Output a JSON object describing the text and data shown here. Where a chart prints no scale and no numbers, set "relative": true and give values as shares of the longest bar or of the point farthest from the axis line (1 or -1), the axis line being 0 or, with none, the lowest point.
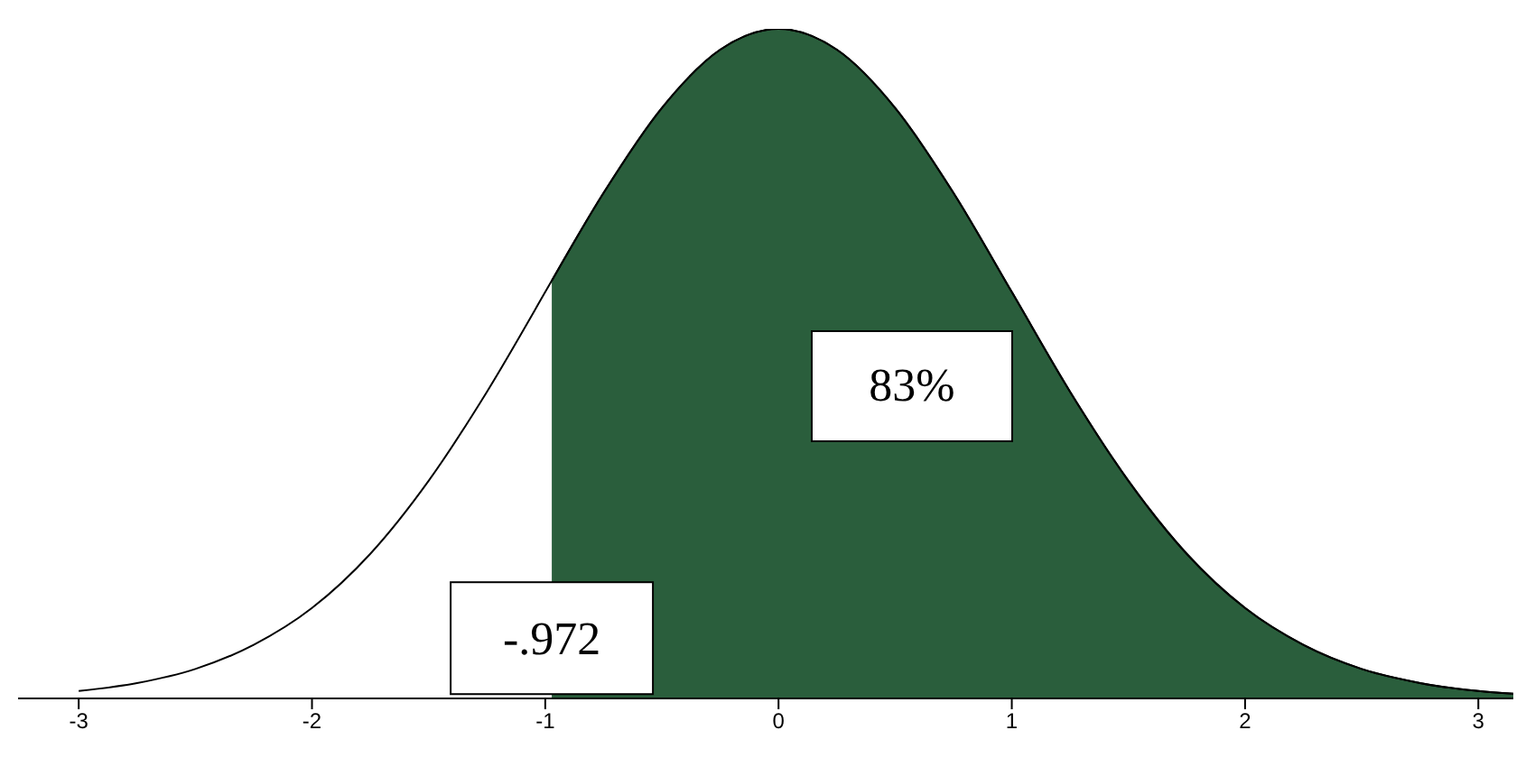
{
  "chart_data": {
    "type": "line",
    "relative": true,
    "xlim": [
      -3.26,
      3.15
    ],
    "xticks": [
      -3,
      -2,
      -1,
      0,
      1,
      2,
      3
    ],
    "grid": false,
    "legend": false,
    "marker": "none",
    "line_style": "solid",
    "annotations": [
      {
        "text": "-.972",
        "x": -0.972,
        "y": 0.09
      },
      "83%"
    ],
    "series": [
      {
        "color": "#000000",
        "x": [
          -3,
          -2.75,
          -2.5,
          -2.25,
          -2,
          -1.75,
          -1.5,
          -1.25,
          -1,
          -0.972,
          -0.75,
          -0.5,
          -0.25,
          0,
          0.25,
          0.5,
          0.75,
          1,
          1.25,
          1.5,
          1.75,
          2,
          2.25,
          2.5,
          2.75,
          3,
          3.15
        ],
        "values": [
          0.011,
          0.023,
          0.044,
          0.08,
          0.135,
          0.216,
          0.325,
          0.458,
          0.607,
          0.624,
          0.755,
          0.882,
          0.969,
          1,
          0.969,
          0.882,
          0.755,
          0.607,
          0.458,
          0.325,
          0.216,
          0.135,
          0.08,
          0.044,
          0.023,
          0.011,
          0.007
        ]
      },
      {
        "type": "area",
        "color": "#2a5e3c",
        "x": [
          -0.972,
          -0.75,
          -0.5,
          -0.25,
          0,
          0.25,
          0.5,
          0.75,
          1,
          1.25,
          1.5,
          1.75,
          2,
          2.25,
          2.5,
          2.75,
          3,
          3.15
        ],
        "values": [
          0.624,
          0.755,
          0.882,
          0.969,
          1,
          0.969,
          0.882,
          0.755,
          0.607,
          0.458,
          0.325,
          0.216,
          0.135,
          0.08,
          0.044,
          0.023,
          0.011,
          0.007
        ]
      }
    ]
  }
}
